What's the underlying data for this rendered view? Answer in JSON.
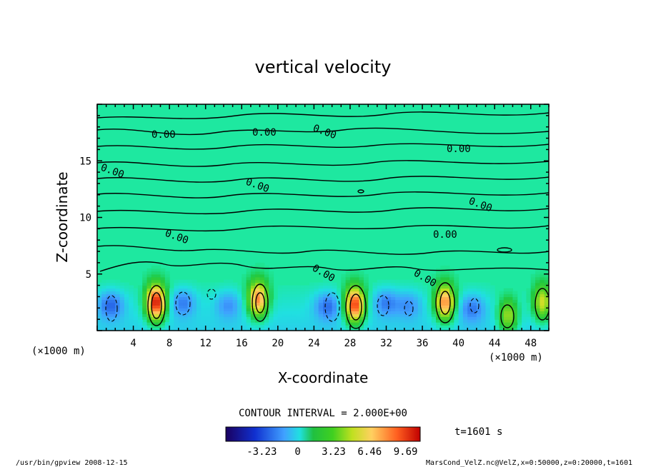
{
  "chart_data": {
    "type": "heatmap",
    "title": "vertical velocity",
    "xlabel": "X-coordinate",
    "ylabel": "Z-coordinate",
    "x_unit_left": "(×1000 m)",
    "x_unit_right": "(×1000 m)",
    "x_ticks": [
      "4",
      "8",
      "12",
      "16",
      "20",
      "24",
      "28",
      "32",
      "36",
      "40",
      "44",
      "48"
    ],
    "y_ticks": [
      "5",
      "10",
      "15"
    ],
    "xlim": [
      0,
      50
    ],
    "ylim": [
      0,
      20
    ],
    "contour_interval_label": "CONTOUR INTERVAL = 2.000E+00",
    "time_label": "t=1601 s",
    "colorbar": {
      "tick_labels": [
        "-3.23",
        "0",
        "3.23",
        "6.46",
        "9.69"
      ],
      "tick_values": [
        -3.23,
        0,
        3.23,
        6.46,
        9.69
      ],
      "range": [
        -6.46,
        11.0
      ]
    },
    "contour_labels": [
      "0.00",
      "0.00",
      "0.00",
      "0.00",
      "0.00",
      "0.00",
      "0.00",
      "0.00",
      "0.00",
      "0.00",
      "0.00"
    ],
    "updrafts": [
      {
        "x": 6.5,
        "z": 2.5,
        "peak": 9.7
      },
      {
        "x": 17.8,
        "z": 2.8,
        "peak": 7.5
      },
      {
        "x": 28.5,
        "z": 2.3,
        "peak": 9.0
      },
      {
        "x": 38.5,
        "z": 2.5,
        "peak": 7.5
      },
      {
        "x": 45.5,
        "z": 1.3,
        "peak": 4.5
      },
      {
        "x": 49.3,
        "z": 2.5,
        "peak": 5.0
      }
    ],
    "downdrafts": [
      {
        "x": 1.5,
        "z": 2.3,
        "peak": -3.0
      },
      {
        "x": 9.5,
        "z": 2.5,
        "peak": -2.5
      },
      {
        "x": 14.5,
        "z": 2.3,
        "peak": -2.0
      },
      {
        "x": 25.5,
        "z": 2.2,
        "peak": -2.8
      },
      {
        "x": 32.0,
        "z": 2.5,
        "peak": -2.5
      },
      {
        "x": 34.5,
        "z": 2.3,
        "peak": -2.0
      },
      {
        "x": 41.5,
        "z": 2.0,
        "peak": -2.5
      }
    ],
    "background_value": 0.3
  },
  "footer": {
    "left": "/usr/bin/gpview   2008-12-15",
    "right": "MarsCond_VelZ.nc@VelZ,x=0:50000,z=0:20000,t=1601"
  }
}
